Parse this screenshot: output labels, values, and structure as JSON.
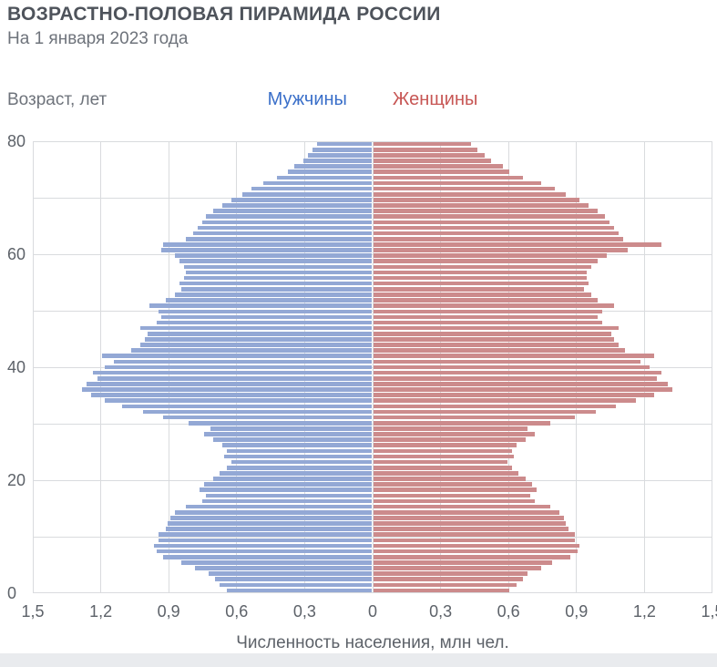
{
  "header": {
    "title": "ВОЗРАСТНО-ПОЛОВАЯ ПИРАМИДА РОССИИ",
    "subtitle": "На 1 января 2023 года"
  },
  "chart_data": {
    "type": "bar",
    "variant": "population-pyramid",
    "title": "ВОЗРАСТНО-ПОЛОВАЯ ПИРАМИДА РОССИИ",
    "subtitle": "На 1 января 2023 года",
    "y_axis_label": "Возраст, лет",
    "x_axis_label": "Численность населения, млн чел.",
    "x_max": 1.5,
    "x_tick_step": 0.3,
    "x_tick_labels_left_to_right": [
      "1,5",
      "1,2",
      "0,9",
      "0,6",
      "0,3",
      "0",
      "0,3",
      "0,6",
      "0,9",
      "1,2",
      "1,5"
    ],
    "age_axis": {
      "min": 0,
      "max": 80,
      "gridline_step_years": 10,
      "label_step_years": 20,
      "labeled_ticks": [
        "0",
        "20",
        "40",
        "60",
        "80"
      ]
    },
    "grid": true,
    "legend_position": "top-center",
    "legend": [
      {
        "label": "Мужчины",
        "text_color": "#3a6fc9",
        "bar_color": "#93a8d5"
      },
      {
        "label": "Женщины",
        "text_color": "#c75654",
        "bar_color": "#cc8b8c"
      }
    ],
    "colors": {
      "gridline": "#d9dbde",
      "axis_text": "#5d6269",
      "title_text": "#4e535b",
      "muted_text": "#6e737b"
    },
    "unit": "млн чел.",
    "series": [
      {
        "name": "Мужчины",
        "side": "left",
        "color": "#93a8d5",
        "ages_0_to_80_values_mln": [
          0.64,
          0.67,
          0.69,
          0.72,
          0.78,
          0.84,
          0.92,
          0.95,
          0.96,
          0.94,
          0.94,
          0.91,
          0.9,
          0.89,
          0.87,
          0.82,
          0.75,
          0.73,
          0.76,
          0.74,
          0.7,
          0.67,
          0.64,
          0.62,
          0.65,
          0.64,
          0.66,
          0.7,
          0.74,
          0.71,
          0.81,
          0.92,
          1.01,
          1.1,
          1.18,
          1.24,
          1.28,
          1.26,
          1.21,
          1.23,
          1.18,
          1.14,
          1.19,
          1.06,
          1.02,
          1.0,
          0.99,
          1.02,
          0.95,
          0.93,
          0.94,
          0.98,
          0.91,
          0.87,
          0.84,
          0.85,
          0.83,
          0.82,
          0.83,
          0.85,
          0.87,
          0.93,
          0.92,
          0.82,
          0.79,
          0.77,
          0.75,
          0.73,
          0.7,
          0.66,
          0.62,
          0.57,
          0.53,
          0.48,
          0.42,
          0.37,
          0.34,
          0.3,
          0.28,
          0.26,
          0.24
        ]
      },
      {
        "name": "Женщины",
        "side": "right",
        "color": "#cc8b8c",
        "ages_0_to_80_values_mln": [
          0.6,
          0.63,
          0.66,
          0.68,
          0.74,
          0.79,
          0.87,
          0.9,
          0.91,
          0.89,
          0.89,
          0.86,
          0.85,
          0.84,
          0.82,
          0.78,
          0.71,
          0.69,
          0.72,
          0.7,
          0.67,
          0.64,
          0.61,
          0.59,
          0.62,
          0.61,
          0.63,
          0.67,
          0.71,
          0.68,
          0.78,
          0.89,
          0.98,
          1.07,
          1.16,
          1.24,
          1.32,
          1.3,
          1.25,
          1.27,
          1.22,
          1.18,
          1.24,
          1.11,
          1.08,
          1.06,
          1.05,
          1.08,
          1.01,
          0.99,
          1.01,
          1.06,
          0.99,
          0.96,
          0.93,
          0.95,
          0.94,
          0.94,
          0.96,
          0.99,
          1.03,
          1.12,
          1.27,
          1.1,
          1.08,
          1.06,
          1.04,
          1.02,
          0.99,
          0.95,
          0.91,
          0.85,
          0.8,
          0.74,
          0.66,
          0.6,
          0.57,
          0.52,
          0.49,
          0.46,
          0.43
        ]
      }
    ]
  }
}
